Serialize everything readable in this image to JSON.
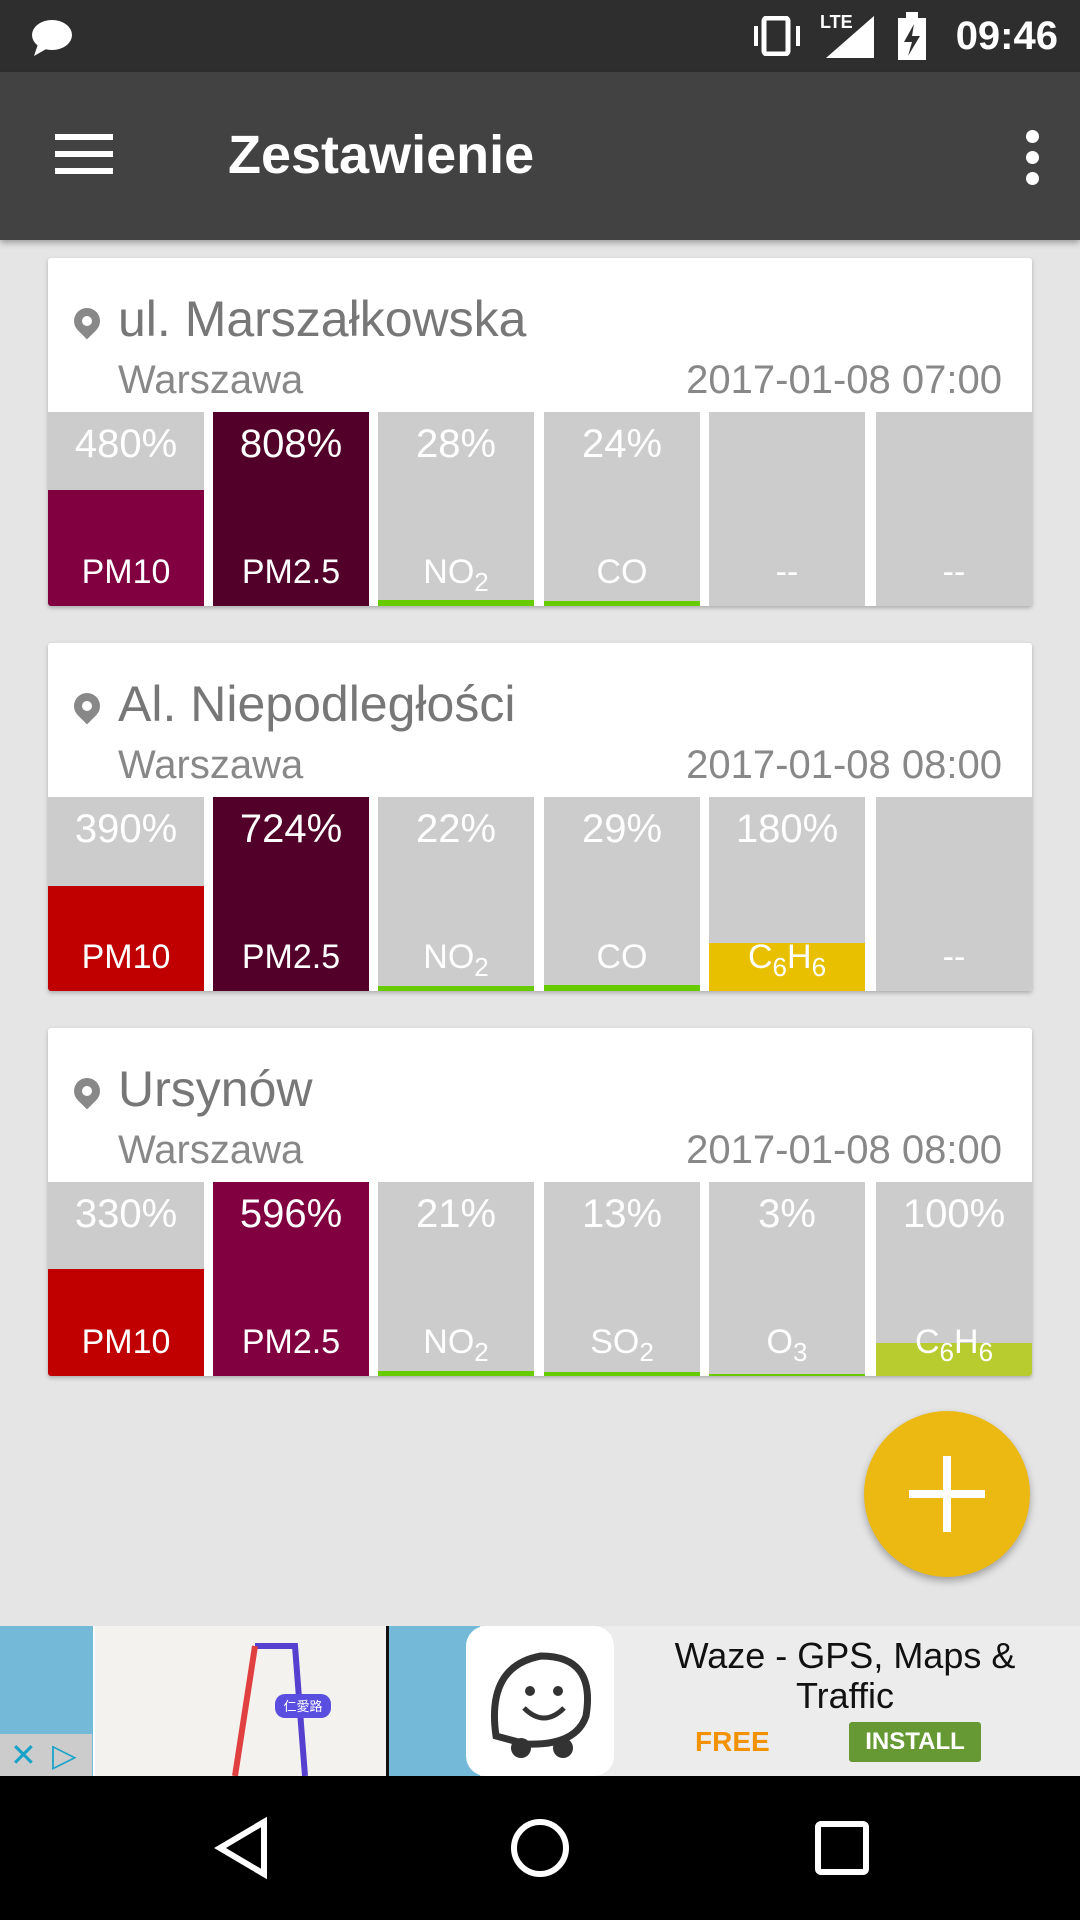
{
  "status": {
    "time": "09:46",
    "network": "LTE"
  },
  "appbar": {
    "title": "Zestawienie"
  },
  "cards": [
    {
      "name": "ul. Marszałkowska",
      "city": "Warszawa",
      "date": "2017-01-08 07:00",
      "tiles": [
        {
          "value": "480%",
          "label": "PM10",
          "sub": "",
          "color": "#800040",
          "fill": 0.6
        },
        {
          "value": "808%",
          "label": "PM2.5",
          "sub": "",
          "color": "#52002a",
          "fill": 1
        },
        {
          "value": "28%",
          "label": "NO",
          "sub": "2",
          "color": "#66cc00",
          "fill": 0.03
        },
        {
          "value": "24%",
          "label": "CO",
          "sub": "",
          "color": "#66cc00",
          "fill": 0.025
        },
        {
          "value": "",
          "label": "--",
          "sub": "",
          "color": "#cccccc",
          "fill": 0
        },
        {
          "value": "",
          "label": "--",
          "sub": "",
          "color": "#cccccc",
          "fill": 0
        }
      ]
    },
    {
      "name": "Al. Niepodległości",
      "city": "Warszawa",
      "date": "2017-01-08 08:00",
      "tiles": [
        {
          "value": "390%",
          "label": "PM10",
          "sub": "",
          "color": "#c00000",
          "fill": 0.54
        },
        {
          "value": "724%",
          "label": "PM2.5",
          "sub": "",
          "color": "#52002a",
          "fill": 1
        },
        {
          "value": "22%",
          "label": "NO",
          "sub": "2",
          "color": "#66cc00",
          "fill": 0.025
        },
        {
          "value": "29%",
          "label": "CO",
          "sub": "",
          "color": "#66cc00",
          "fill": 0.03
        },
        {
          "value": "180%",
          "label": "C",
          "sub": "6",
          "label2": "H",
          "sub2": "6",
          "color": "#e8c000",
          "fill": 0.25
        },
        {
          "value": "",
          "label": "--",
          "sub": "",
          "color": "#cccccc",
          "fill": 0
        }
      ]
    },
    {
      "name": "Ursynów",
      "city": "Warszawa",
      "date": "2017-01-08 08:00",
      "tiles": [
        {
          "value": "330%",
          "label": "PM10",
          "sub": "",
          "color": "#c00000",
          "fill": 0.55
        },
        {
          "value": "596%",
          "label": "PM2.5",
          "sub": "",
          "color": "#800040",
          "fill": 1
        },
        {
          "value": "21%",
          "label": "NO",
          "sub": "2",
          "color": "#66cc00",
          "fill": 0.025
        },
        {
          "value": "13%",
          "label": "SO",
          "sub": "2",
          "color": "#66cc00",
          "fill": 0.02
        },
        {
          "value": "3%",
          "label": "O",
          "sub": "3",
          "color": "#66cc00",
          "fill": 0.01
        },
        {
          "value": "100%",
          "label": "C",
          "sub": "6",
          "label2": "H",
          "sub2": "6",
          "color": "#b8cc30",
          "fill": 0.17
        }
      ]
    }
  ],
  "ad": {
    "title": "Waze - GPS, Maps & Traffic",
    "price": "FREE",
    "install": "INSTALL",
    "map_label": "仁愛路"
  }
}
